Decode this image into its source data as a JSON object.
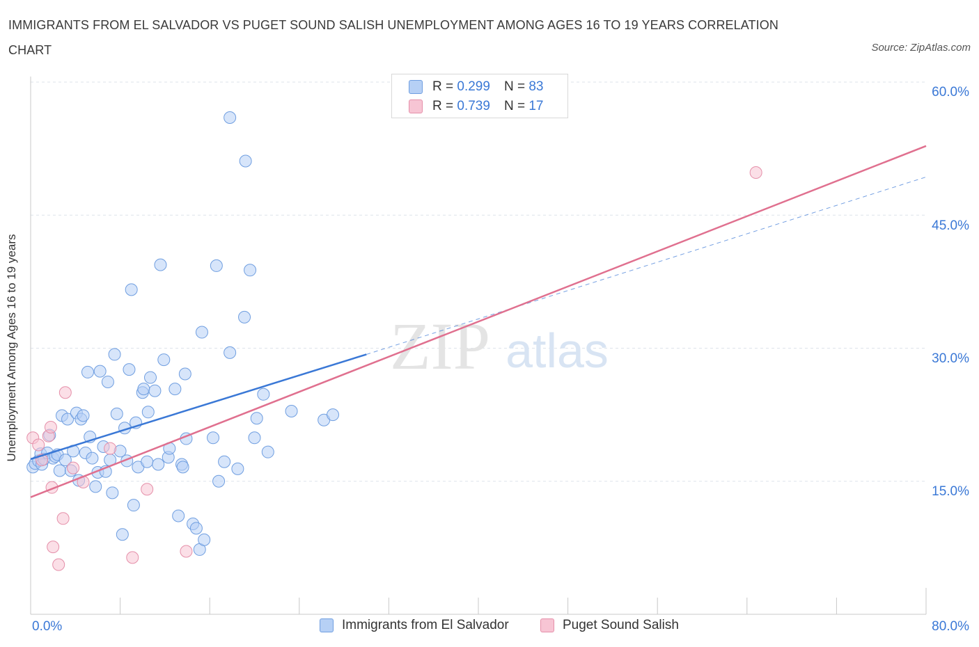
{
  "title": "IMMIGRANTS FROM EL SALVADOR VS PUGET SOUND SALISH UNEMPLOYMENT AMONG AGES 16 TO 19 YEARS CORRELATION CHART",
  "source": "Source: ZipAtlas.com",
  "watermark": {
    "zip": "ZIP",
    "atlas": "atlas"
  },
  "colors": {
    "blue": "#3a78d6",
    "blue_fill": "#b6d0f5",
    "pink": "#e0708f",
    "pink_fill": "#f7c5d4",
    "grid": "#dde3ea"
  },
  "legend_top": {
    "rows": [
      {
        "r_label": "R = ",
        "r_value": "0.299",
        "n_label": "N = ",
        "n_value": "83"
      },
      {
        "r_label": "R = ",
        "r_value": "0.739",
        "n_label": "N = ",
        "n_value": "17"
      }
    ]
  },
  "chart_data": {
    "type": "scatter",
    "xlabel": "",
    "ylabel": "Unemployment Among Ages 16 to 19 years",
    "xlim": [
      0,
      80
    ],
    "ylim": [
      0,
      60
    ],
    "x_tick_labels": [
      "0.0%",
      "80.0%"
    ],
    "y_ticks": [
      15,
      30,
      45,
      60
    ],
    "y_tick_labels": [
      "15.0%",
      "30.0%",
      "45.0%",
      "60.0%"
    ],
    "grid": true,
    "legend_position": "bottom",
    "series": [
      {
        "name": "Immigrants from El Salvador",
        "color": "#3a78d6",
        "points": [
          [
            0.2,
            16.6
          ],
          [
            0.4,
            17.0
          ],
          [
            0.7,
            17.3
          ],
          [
            0.9,
            18.1
          ],
          [
            1.0,
            16.9
          ],
          [
            1.2,
            17.5
          ],
          [
            1.5,
            18.2
          ],
          [
            1.7,
            20.2
          ],
          [
            2.0,
            17.6
          ],
          [
            2.2,
            17.8
          ],
          [
            2.4,
            18.0
          ],
          [
            2.6,
            16.2
          ],
          [
            2.8,
            22.4
          ],
          [
            3.1,
            17.4
          ],
          [
            3.3,
            22.0
          ],
          [
            3.6,
            16.2
          ],
          [
            3.8,
            18.4
          ],
          [
            4.1,
            22.7
          ],
          [
            4.3,
            15.1
          ],
          [
            4.5,
            22.0
          ],
          [
            4.7,
            22.4
          ],
          [
            4.9,
            18.2
          ],
          [
            5.1,
            27.3
          ],
          [
            5.3,
            20.0
          ],
          [
            5.5,
            17.6
          ],
          [
            5.8,
            14.4
          ],
          [
            6.0,
            16.0
          ],
          [
            6.2,
            27.4
          ],
          [
            6.5,
            18.9
          ],
          [
            6.7,
            16.1
          ],
          [
            6.9,
            26.2
          ],
          [
            7.1,
            17.4
          ],
          [
            7.3,
            13.7
          ],
          [
            7.5,
            29.3
          ],
          [
            7.7,
            22.6
          ],
          [
            8.0,
            18.4
          ],
          [
            8.2,
            9.0
          ],
          [
            8.4,
            21.0
          ],
          [
            8.6,
            17.3
          ],
          [
            8.8,
            27.6
          ],
          [
            9.0,
            36.6
          ],
          [
            9.2,
            12.3
          ],
          [
            9.4,
            21.6
          ],
          [
            9.6,
            16.6
          ],
          [
            10.0,
            25.0
          ],
          [
            10.1,
            25.4
          ],
          [
            10.4,
            17.2
          ],
          [
            10.5,
            22.8
          ],
          [
            10.7,
            26.7
          ],
          [
            11.1,
            25.2
          ],
          [
            11.4,
            16.9
          ],
          [
            11.6,
            39.4
          ],
          [
            11.9,
            28.7
          ],
          [
            12.3,
            17.7
          ],
          [
            12.4,
            18.7
          ],
          [
            12.9,
            25.4
          ],
          [
            13.2,
            11.1
          ],
          [
            13.5,
            16.9
          ],
          [
            13.6,
            16.6
          ],
          [
            13.8,
            27.1
          ],
          [
            13.9,
            19.8
          ],
          [
            14.5,
            10.2
          ],
          [
            14.8,
            9.7
          ],
          [
            15.1,
            7.3
          ],
          [
            15.3,
            31.8
          ],
          [
            15.5,
            8.4
          ],
          [
            16.3,
            19.9
          ],
          [
            16.6,
            39.3
          ],
          [
            16.8,
            15.0
          ],
          [
            17.3,
            17.2
          ],
          [
            17.8,
            29.5
          ],
          [
            17.8,
            56.0
          ],
          [
            18.5,
            16.4
          ],
          [
            19.1,
            33.5
          ],
          [
            19.2,
            51.1
          ],
          [
            19.6,
            38.8
          ],
          [
            20.0,
            19.9
          ],
          [
            20.2,
            22.1
          ],
          [
            20.8,
            24.8
          ],
          [
            21.2,
            18.3
          ],
          [
            23.3,
            22.9
          ],
          [
            26.2,
            21.9
          ],
          [
            27.0,
            22.5
          ]
        ]
      },
      {
        "name": "Puget Sound Salish",
        "color": "#e0708f",
        "points": [
          [
            0.2,
            19.9
          ],
          [
            0.7,
            19.1
          ],
          [
            1.0,
            17.4
          ],
          [
            1.6,
            20.1
          ],
          [
            1.8,
            21.1
          ],
          [
            1.9,
            14.3
          ],
          [
            2.0,
            7.6
          ],
          [
            2.5,
            5.6
          ],
          [
            2.9,
            10.8
          ],
          [
            3.1,
            25.0
          ],
          [
            3.8,
            16.5
          ],
          [
            4.7,
            14.9
          ],
          [
            7.1,
            18.7
          ],
          [
            9.1,
            6.4
          ],
          [
            10.4,
            14.1
          ],
          [
            13.9,
            7.1
          ],
          [
            64.8,
            49.8
          ]
        ]
      }
    ],
    "trend_lines": [
      {
        "series": "Immigrants from El Salvador",
        "from": [
          0,
          17.5
        ],
        "to": [
          30,
          29.3
        ],
        "style": "solid",
        "dashed_extension_to": [
          80,
          49.3
        ]
      },
      {
        "series": "Puget Sound Salish",
        "from": [
          0,
          13.2
        ],
        "to": [
          80,
          52.8
        ],
        "style": "solid"
      }
    ]
  }
}
